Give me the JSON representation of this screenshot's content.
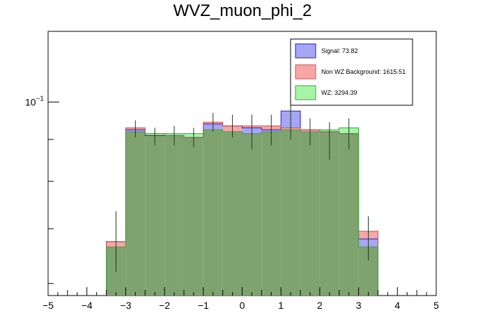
{
  "chart_data": {
    "type": "bar",
    "title": "WVZ_muon_phi_2",
    "xlim": [
      -5,
      5
    ],
    "ylog": true,
    "ylim_display": [
      0.058,
      0.122
    ],
    "y_major_tick": {
      "value": 0.1,
      "label": "10",
      "label_exp": "−1"
    },
    "x_ticks": [
      -5,
      -4,
      -3,
      -2,
      -1,
      0,
      1,
      2,
      3,
      4,
      5
    ],
    "x_tick_labels": [
      "−5",
      "−4",
      "−3",
      "−2",
      "−1",
      "0",
      "1",
      "2",
      "3",
      "4",
      "5"
    ],
    "bin_edges": [
      -3.5,
      -3.0,
      -2.5,
      -2.0,
      -1.5,
      -1.0,
      -0.5,
      0.0,
      0.5,
      1.0,
      1.5,
      2.0,
      2.5,
      3.0,
      3.5
    ],
    "series": [
      {
        "name": "Signal: 73.82",
        "fill": "#a6a6f5",
        "line": "#2020c0",
        "values": [
          0.0675,
          0.0925,
          0.091,
          0.091,
          0.0905,
          0.094,
          0.0935,
          0.093,
          0.0925,
          0.0975,
          0.0925,
          0.092,
          0.0915,
          0.068
        ]
      },
      {
        "name": "Non WZ Background: 1615.51",
        "fill": "#f7a6a6",
        "line": "#d05050",
        "values": [
          0.0675,
          0.093,
          0.0915,
          0.091,
          0.0905,
          0.0945,
          0.0935,
          0.0935,
          0.0935,
          0.093,
          0.0925,
          0.092,
          0.0915,
          0.0695
        ]
      },
      {
        "name": "WZ: 3294.39",
        "fill": "#a6f5a6",
        "line": "#40a040",
        "values": [
          0.0665,
          0.092,
          0.0915,
          0.0915,
          0.0915,
          0.0925,
          0.092,
          0.0915,
          0.092,
          0.0925,
          0.092,
          0.0925,
          0.093,
          0.0665
        ]
      }
    ],
    "errors": [
      {
        "x": -3.25,
        "lo": 0.062,
        "hi": 0.0735
      },
      {
        "x": -2.75,
        "lo": 0.0905,
        "hi": 0.095
      },
      {
        "x": -2.25,
        "lo": 0.0885,
        "hi": 0.093
      },
      {
        "x": -1.75,
        "lo": 0.0885,
        "hi": 0.0935
      },
      {
        "x": -1.25,
        "lo": 0.088,
        "hi": 0.093
      },
      {
        "x": -0.75,
        "lo": 0.092,
        "hi": 0.097
      },
      {
        "x": -0.25,
        "lo": 0.0905,
        "hi": 0.0965
      },
      {
        "x": 0.25,
        "lo": 0.0875,
        "hi": 0.0965
      },
      {
        "x": 0.75,
        "lo": 0.0885,
        "hi": 0.0965
      },
      {
        "x": 1.25,
        "lo": 0.09,
        "hi": 0.1035
      },
      {
        "x": 1.75,
        "lo": 0.0885,
        "hi": 0.0955
      },
      {
        "x": 2.25,
        "lo": 0.085,
        "hi": 0.0945
      },
      {
        "x": 2.75,
        "lo": 0.0875,
        "hi": 0.0955
      },
      {
        "x": 3.25,
        "lo": 0.064,
        "hi": 0.0725
      }
    ],
    "legend": {
      "placement": "top-right",
      "entries": [
        "Signal: 73.82",
        "Non WZ Background: 1615.51",
        "WZ: 3294.39"
      ]
    },
    "overlay_fill": "#7fa36f",
    "overlay_line": "#4a7a3a",
    "outline": "#1a1a8c",
    "error_color": "#1a3a1a"
  }
}
